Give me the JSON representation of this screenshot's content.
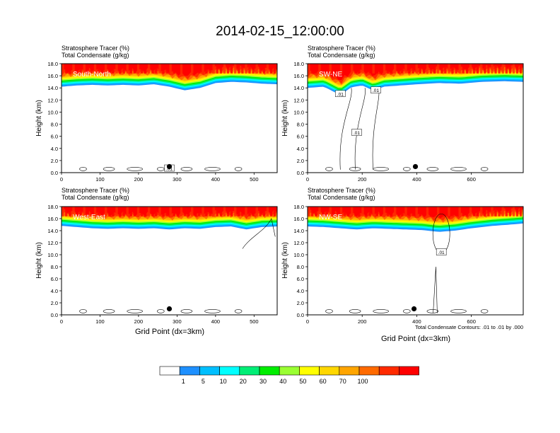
{
  "figure": {
    "title": "2014-02-15_12:00:00",
    "footnote": "Total Condensate Contours: .01 to .01 by .000"
  },
  "colorbar": {
    "colors": [
      "#ffffff",
      "#1e90ff",
      "#00bfff",
      "#00ffff",
      "#00ee76",
      "#00ee00",
      "#9aff32",
      "#ffff00",
      "#ffd700",
      "#ffa500",
      "#ff6a00",
      "#ff2a00",
      "#ff0000"
    ],
    "labels": [
      "1",
      "5",
      "10",
      "20",
      "30",
      "40",
      "50",
      "60",
      "70",
      "100"
    ]
  },
  "chart_data": [
    {
      "type": "heatmap",
      "panel": "South-North",
      "subtitle_1": "Stratosphere Tracer   (%)",
      "subtitle_2": "Total Condensate   (g/kg)",
      "ylabel": "Height (km)",
      "xlabel": "",
      "xlim": [
        0,
        560
      ],
      "ylim": [
        0,
        18
      ],
      "xticks": [
        "0",
        "100",
        "200",
        "300",
        "400",
        "500"
      ],
      "xtick_values": [
        0,
        100,
        200,
        300,
        400,
        500
      ],
      "yticks": [
        "0.0",
        "2.0",
        "4.0",
        "6.0",
        "8.0",
        "10.0",
        "12.0",
        "14.0",
        "16.0",
        "18.0"
      ],
      "tracer_base_km": [
        [
          0,
          14.4
        ],
        [
          40,
          14.6
        ],
        [
          80,
          14.7
        ],
        [
          120,
          14.6
        ],
        [
          160,
          14.7
        ],
        [
          200,
          14.6
        ],
        [
          240,
          14.8
        ],
        [
          280,
          14.4
        ],
        [
          320,
          13.8
        ],
        [
          360,
          14.2
        ],
        [
          400,
          15.0
        ],
        [
          440,
          15.2
        ],
        [
          480,
          15.1
        ],
        [
          520,
          14.9
        ],
        [
          560,
          14.8
        ]
      ],
      "marker": {
        "x": 280,
        "y_km": 1.0
      },
      "contour_labels": [
        {
          "text": ".01",
          "x": 280,
          "y_km": 0.7
        }
      ]
    },
    {
      "type": "heatmap",
      "panel": "SW-NE",
      "subtitle_1": "Stratosphere Tracer   (%)",
      "subtitle_2": "Total Condensate   (g/kg)",
      "ylabel": "Height (km)",
      "xlabel": "",
      "xlim": [
        0,
        790
      ],
      "ylim": [
        0,
        18
      ],
      "xticks": [
        "0",
        "200",
        "400",
        "600"
      ],
      "xtick_values": [
        0,
        200,
        400,
        600
      ],
      "yticks": [
        "0.0",
        "2.0",
        "4.0",
        "6.0",
        "8.0",
        "10.0",
        "12.0",
        "14.0",
        "16.0",
        "18.0"
      ],
      "tracer_base_km": [
        [
          0,
          14.2
        ],
        [
          60,
          14.4
        ],
        [
          120,
          13.0
        ],
        [
          160,
          14.3
        ],
        [
          200,
          14.6
        ],
        [
          240,
          13.8
        ],
        [
          280,
          14.4
        ],
        [
          340,
          14.6
        ],
        [
          400,
          14.8
        ],
        [
          480,
          15.0
        ],
        [
          560,
          14.9
        ],
        [
          640,
          15.2
        ],
        [
          720,
          15.3
        ],
        [
          790,
          15.2
        ]
      ],
      "marker": {
        "x": 395,
        "y_km": 1.0
      },
      "contour_labels": [
        {
          "text": ".01",
          "x": 120,
          "y_km": 13.0
        },
        {
          "text": ".01",
          "x": 250,
          "y_km": 13.6
        },
        {
          "text": ".01",
          "x": 180,
          "y_km": 6.6
        }
      ]
    },
    {
      "type": "heatmap",
      "panel": "West-East",
      "subtitle_1": "Stratosphere Tracer   (%)",
      "subtitle_2": "Total Condensate   (g/kg)",
      "ylabel": "Height (km)",
      "xlabel": "Grid Point (dx=3km)",
      "xlim": [
        0,
        560
      ],
      "ylim": [
        0,
        18
      ],
      "xticks": [
        "0",
        "100",
        "200",
        "300",
        "400",
        "500"
      ],
      "xtick_values": [
        0,
        100,
        200,
        300,
        400,
        500
      ],
      "yticks": [
        "0.0",
        "2.0",
        "4.0",
        "6.0",
        "8.0",
        "10.0",
        "12.0",
        "14.0",
        "16.0",
        "18.0"
      ],
      "tracer_base_km": [
        [
          0,
          15.0
        ],
        [
          40,
          14.8
        ],
        [
          80,
          14.6
        ],
        [
          120,
          14.5
        ],
        [
          160,
          14.6
        ],
        [
          200,
          14.5
        ],
        [
          240,
          14.6
        ],
        [
          280,
          14.4
        ],
        [
          320,
          14.6
        ],
        [
          360,
          14.5
        ],
        [
          400,
          14.8
        ],
        [
          440,
          14.9
        ],
        [
          480,
          14.4
        ],
        [
          520,
          14.8
        ],
        [
          560,
          14.9
        ]
      ],
      "marker": {
        "x": 280,
        "y_km": 1.0
      },
      "contour_labels": []
    },
    {
      "type": "heatmap",
      "panel": "NW-SE",
      "subtitle_1": "Stratosphere Tracer   (%)",
      "subtitle_2": "Total Condensate   (g/kg)",
      "ylabel": "Height (km)",
      "xlabel": "Grid Point (dx=3km)",
      "xlim": [
        0,
        790
      ],
      "ylim": [
        0,
        18
      ],
      "xticks": [
        "0",
        "200",
        "400",
        "600"
      ],
      "xtick_values": [
        0,
        200,
        400,
        600
      ],
      "yticks": [
        "0.0",
        "2.0",
        "4.0",
        "6.0",
        "8.0",
        "10.0",
        "12.0",
        "14.0",
        "16.0",
        "18.0"
      ],
      "tracer_base_km": [
        [
          0,
          14.9
        ],
        [
          60,
          14.8
        ],
        [
          120,
          14.6
        ],
        [
          180,
          14.4
        ],
        [
          240,
          14.6
        ],
        [
          300,
          14.5
        ],
        [
          360,
          14.4
        ],
        [
          420,
          14.3
        ],
        [
          480,
          14.0
        ],
        [
          540,
          14.2
        ],
        [
          600,
          14.6
        ],
        [
          680,
          15.0
        ],
        [
          740,
          15.2
        ],
        [
          790,
          15.4
        ]
      ],
      "marker": {
        "x": 390,
        "y_km": 1.0
      },
      "contour_labels": [
        {
          "text": ".01",
          "x": 490,
          "y_km": 10.4
        }
      ]
    }
  ]
}
